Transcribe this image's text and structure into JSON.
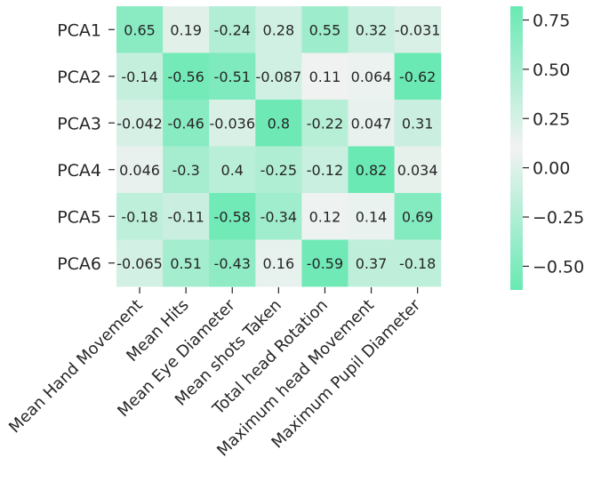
{
  "chart_data": {
    "type": "heatmap",
    "title": "",
    "xlabel": "",
    "ylabel": "",
    "rows": [
      "PCA1",
      "PCA2",
      "PCA3",
      "PCA4",
      "PCA5",
      "PCA6"
    ],
    "columns": [
      "Mean Hand Movement",
      "Mean Hits",
      "Mean Eye Diameter",
      "Mean shots Taken",
      "Total head Rotation",
      "Maximum head Movement",
      "Maximum Pupil Diameter"
    ],
    "values": [
      [
        0.65,
        0.19,
        -0.24,
        0.28,
        0.55,
        0.32,
        -0.031
      ],
      [
        -0.14,
        -0.56,
        -0.51,
        -0.087,
        0.11,
        0.064,
        -0.62
      ],
      [
        -0.042,
        -0.46,
        -0.036,
        0.8,
        -0.22,
        0.047,
        0.31
      ],
      [
        0.046,
        -0.3,
        0.4,
        -0.25,
        -0.12,
        0.82,
        0.034
      ],
      [
        -0.18,
        -0.11,
        -0.58,
        -0.34,
        0.12,
        0.14,
        0.69
      ],
      [
        -0.065,
        0.51,
        -0.43,
        0.16,
        -0.59,
        0.37,
        -0.18
      ]
    ],
    "value_labels": [
      [
        "0.65",
        "0.19",
        "-0.24",
        "0.28",
        "0.55",
        "0.32",
        "-0.031"
      ],
      [
        "-0.14",
        "-0.56",
        "-0.51",
        "-0.087",
        "0.11",
        "0.064",
        "-0.62"
      ],
      [
        "-0.042",
        "-0.46",
        "-0.036",
        "0.8",
        "-0.22",
        "0.047",
        "0.31"
      ],
      [
        "0.046",
        "-0.3",
        "0.4",
        "-0.25",
        "-0.12",
        "0.82",
        "0.034"
      ],
      [
        "-0.18",
        "-0.11",
        "-0.58",
        "-0.34",
        "0.12",
        "0.14",
        "0.69"
      ],
      [
        "-0.065",
        "0.51",
        "-0.43",
        "0.16",
        "-0.59",
        "0.37",
        "-0.18"
      ]
    ],
    "colorbar": {
      "range": [
        -0.62,
        0.82
      ],
      "ticks": [
        0.75,
        0.5,
        0.25,
        0.0,
        -0.25,
        -0.5
      ],
      "tick_labels": [
        "0.75",
        "0.50",
        "0.25",
        "0.00",
        "−0.25",
        "−0.50"
      ],
      "center_value": 0.1,
      "colors": {
        "extreme": "#6ae9b4",
        "center": "#f2f2f2"
      }
    },
    "grid": false,
    "legend": "colorbar-right"
  }
}
